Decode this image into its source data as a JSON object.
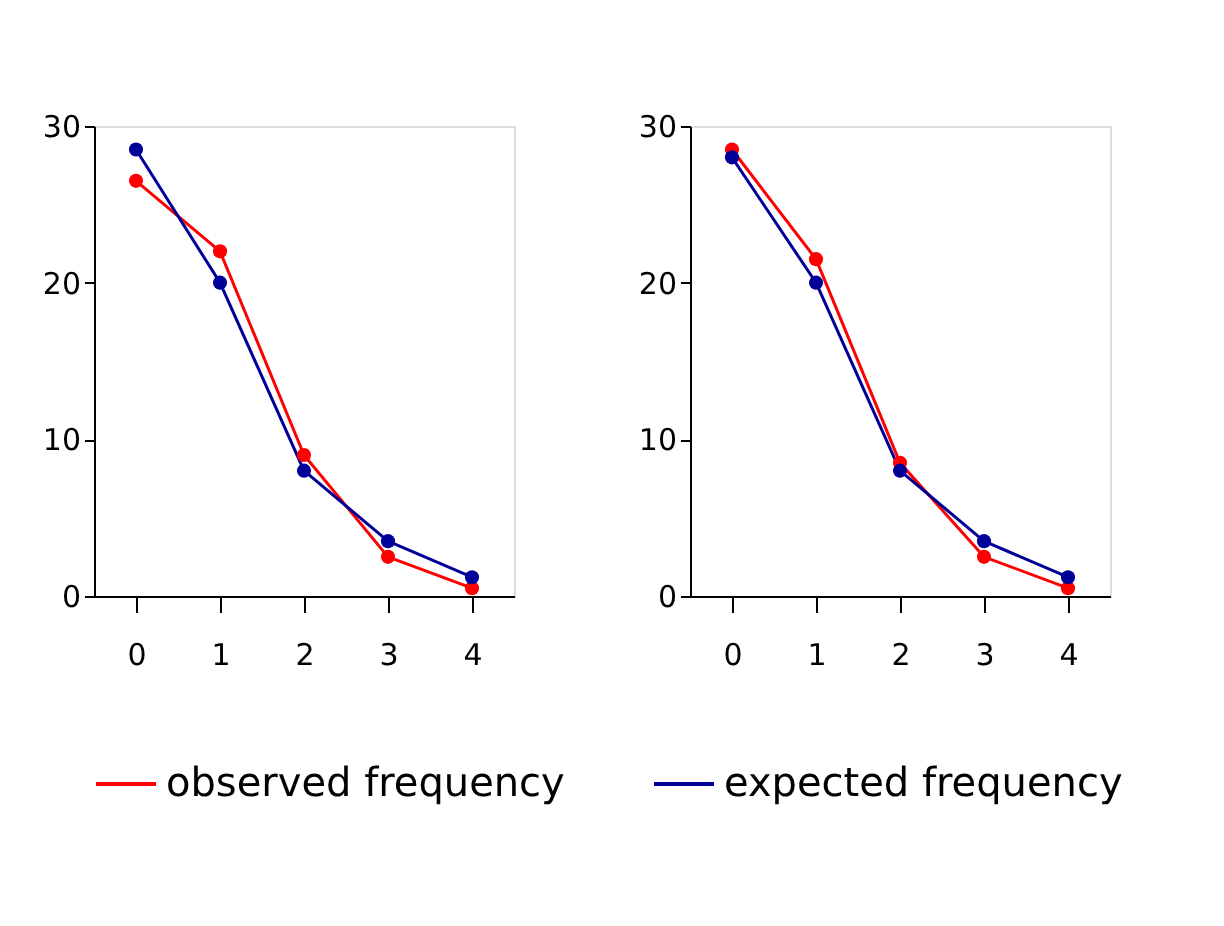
{
  "chart_data": [
    {
      "type": "line",
      "categories": [
        "0",
        "1",
        "2",
        "3",
        "4"
      ],
      "ylim": [
        0,
        30
      ],
      "yticks": [
        0,
        10,
        20,
        30
      ],
      "grid": false,
      "marker": "circle",
      "line_style": "solid",
      "legend": "bottom",
      "series": [
        {
          "name": "observed frequency",
          "color": "#ff0000",
          "values": [
            26.5,
            22,
            9,
            2.5,
            0.5
          ]
        },
        {
          "name": "expected frequency",
          "color": "#000099",
          "values": [
            28.5,
            20,
            8,
            3.5,
            1.2
          ]
        }
      ]
    },
    {
      "type": "line",
      "categories": [
        "0",
        "1",
        "2",
        "3",
        "4"
      ],
      "ylim": [
        0,
        30
      ],
      "yticks": [
        0,
        10,
        20,
        30
      ],
      "grid": false,
      "marker": "circle",
      "line_style": "solid",
      "legend": "bottom",
      "series": [
        {
          "name": "observed frequency",
          "color": "#ff0000",
          "values": [
            28.5,
            21.5,
            8.5,
            2.5,
            0.5
          ]
        },
        {
          "name": "expected frequency",
          "color": "#000099",
          "values": [
            28,
            20,
            8,
            3.5,
            1.2
          ]
        }
      ]
    }
  ]
}
